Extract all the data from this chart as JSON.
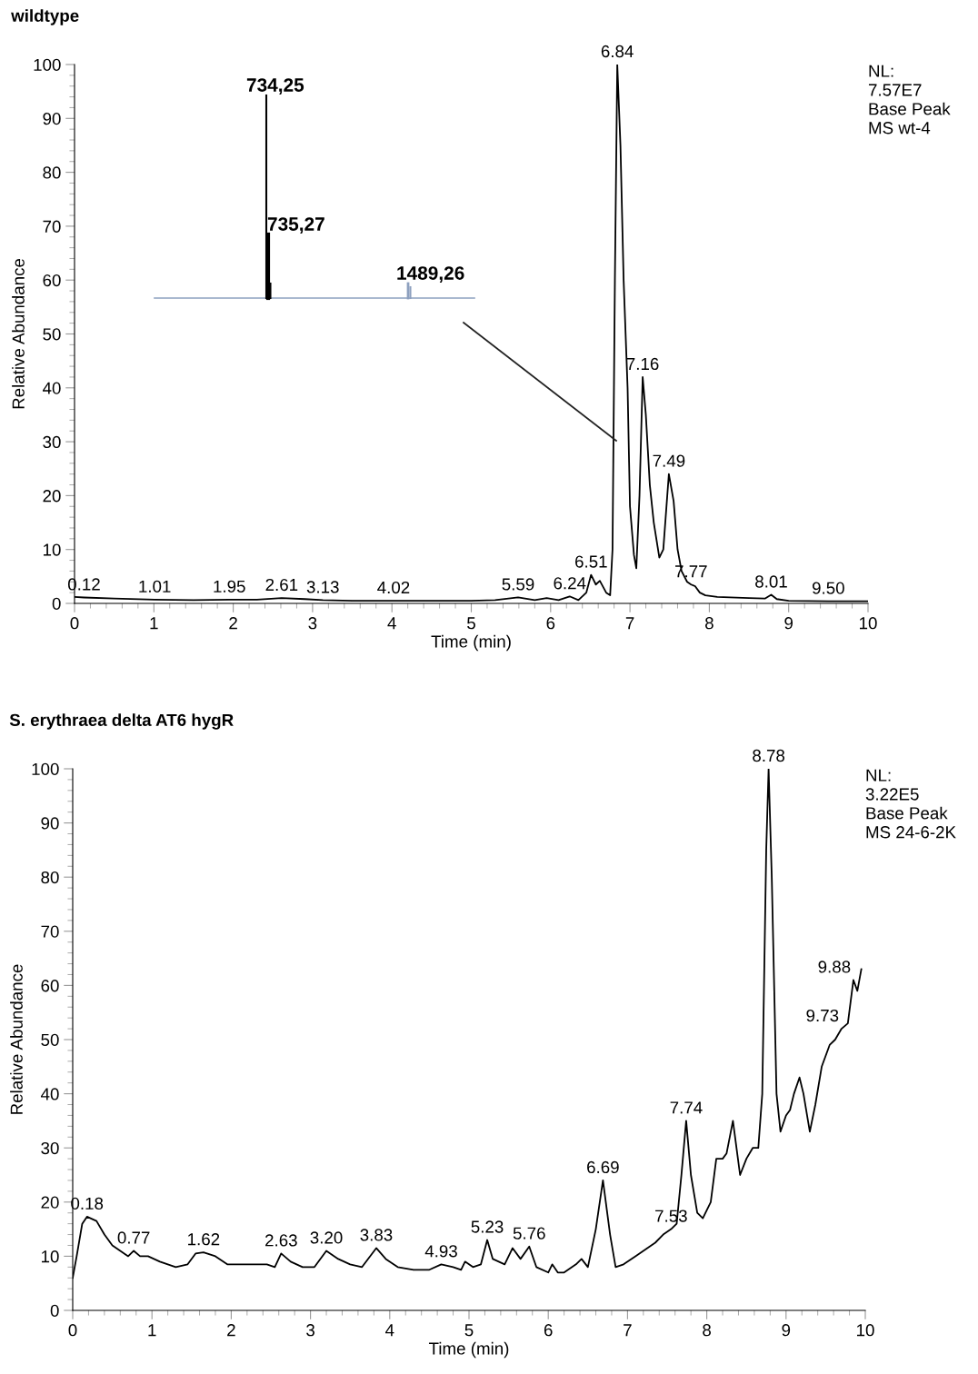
{
  "chart_data": [
    {
      "type": "line",
      "title": "wildtype",
      "xlabel": "Time (min)",
      "ylabel": "Relative Abundance",
      "xlim": [
        0,
        10
      ],
      "xticks": [
        0,
        1,
        2,
        3,
        4,
        5,
        6,
        7,
        8,
        9,
        10
      ],
      "ylim": [
        0,
        100
      ],
      "yticks": [
        0,
        10,
        20,
        30,
        40,
        50,
        60,
        70,
        80,
        90,
        100
      ],
      "grid": false,
      "legend": false,
      "marker": "none",
      "line_style": "solid",
      "series": [
        {
          "color": "#000000",
          "x": [
            0,
            0.12,
            0.5,
            1.01,
            1.5,
            1.95,
            2.3,
            2.61,
            2.9,
            3.13,
            3.5,
            4.02,
            4.5,
            5.0,
            5.3,
            5.59,
            5.8,
            5.95,
            6.1,
            6.24,
            6.35,
            6.45,
            6.51,
            6.57,
            6.62,
            6.7,
            6.75,
            6.78,
            6.81,
            6.84,
            6.88,
            6.92,
            6.97,
            7.0,
            7.05,
            7.08,
            7.12,
            7.16,
            7.2,
            7.25,
            7.3,
            7.37,
            7.42,
            7.49,
            7.55,
            7.6,
            7.65,
            7.72,
            7.77,
            7.82,
            7.88,
            7.95,
            8.1,
            8.5,
            8.7,
            8.78,
            8.85,
            9.0,
            9.5,
            10
          ],
          "values": [
            1.2,
            1.1,
            0.9,
            0.7,
            0.6,
            0.7,
            0.7,
            1.0,
            0.8,
            0.6,
            0.5,
            0.5,
            0.5,
            0.5,
            0.6,
            1.1,
            0.6,
            1.0,
            0.6,
            1.3,
            0.6,
            2,
            5.3,
            3.5,
            4.2,
            2.0,
            1.5,
            10,
            60,
            100,
            85,
            60,
            40,
            18,
            9,
            6.5,
            20,
            42,
            35,
            22,
            15,
            8.5,
            10,
            24,
            19,
            10,
            6,
            4,
            3.5,
            3.2,
            2,
            1.5,
            1.2,
            1.0,
            0.9,
            1.6,
            0.8,
            0.5,
            0.4,
            0.4
          ]
        }
      ],
      "annotations": [
        "NL:\n7.57E7\nBase Peak\nMS wt-4",
        "734,25",
        "735,27",
        "1489,26",
        {
          "text": "0.12",
          "x": 0.12,
          "y": 1.1
        },
        {
          "text": "1.01",
          "x": 1.01,
          "y": 0.7
        },
        {
          "text": "1.95",
          "x": 1.95,
          "y": 0.7
        },
        {
          "text": "2.61",
          "x": 2.61,
          "y": 1.0
        },
        {
          "text": "3.13",
          "x": 3.13,
          "y": 0.6
        },
        {
          "text": "4.02",
          "x": 4.02,
          "y": 0.5
        },
        {
          "text": "5.59",
          "x": 5.59,
          "y": 1.1
        },
        {
          "text": "6.24",
          "x": 6.24,
          "y": 1.3
        },
        {
          "text": "6.51",
          "x": 6.51,
          "y": 5.3
        },
        {
          "text": "6.84",
          "x": 6.84,
          "y": 100
        },
        {
          "text": "7.16",
          "x": 7.16,
          "y": 42
        },
        {
          "text": "7.49",
          "x": 7.49,
          "y": 24
        },
        {
          "text": "7.77",
          "x": 7.77,
          "y": 3.5
        },
        {
          "text": "8.01",
          "x": 8.78,
          "y": 1.6
        },
        {
          "text": "9.50",
          "x": 9.5,
          "y": 0.4
        }
      ]
    },
    {
      "type": "line",
      "title": "S. erythraea delta AT6 hygR",
      "xlabel": "Time (min)",
      "ylabel": "Relative Abundance",
      "xlim": [
        0,
        10
      ],
      "xticks": [
        0,
        1,
        2,
        3,
        4,
        5,
        6,
        7,
        8,
        9,
        10
      ],
      "ylim": [
        0,
        100
      ],
      "yticks": [
        0,
        10,
        20,
        30,
        40,
        50,
        60,
        70,
        80,
        90,
        100
      ],
      "grid": false,
      "legend": false,
      "marker": "none",
      "line_style": "solid",
      "series": [
        {
          "color": "#000000",
          "x": [
            0,
            0.05,
            0.12,
            0.18,
            0.3,
            0.4,
            0.5,
            0.6,
            0.7,
            0.77,
            0.85,
            0.95,
            1.1,
            1.3,
            1.45,
            1.55,
            1.65,
            1.8,
            1.95,
            2.1,
            2.3,
            2.45,
            2.55,
            2.63,
            2.75,
            2.9,
            3.05,
            3.2,
            3.35,
            3.5,
            3.65,
            3.83,
            3.95,
            4.1,
            4.3,
            4.5,
            4.65,
            4.8,
            4.9,
            4.95,
            5.05,
            5.15,
            5.23,
            5.3,
            5.45,
            5.55,
            5.65,
            5.76,
            5.85,
            6.0,
            6.05,
            6.12,
            6.2,
            6.35,
            6.42,
            6.5,
            6.6,
            6.69,
            6.78,
            6.85,
            6.95,
            7.1,
            7.25,
            7.35,
            7.45,
            7.55,
            7.62,
            7.68,
            7.74,
            7.8,
            7.88,
            7.95,
            8.05,
            8.12,
            8.2,
            8.25,
            8.33,
            8.42,
            8.5,
            8.58,
            8.65,
            8.7,
            8.75,
            8.78,
            8.82,
            8.88,
            8.93,
            9.0,
            9.05,
            9.1,
            9.17,
            9.22,
            9.3,
            9.37,
            9.45,
            9.55,
            9.62,
            9.7,
            9.78,
            9.85,
            9.9,
            9.95
          ],
          "values": [
            6,
            10,
            16,
            17.3,
            16.5,
            14,
            12,
            11,
            10,
            11,
            10,
            10,
            9,
            8,
            8.5,
            10.5,
            10.7,
            10,
            8.5,
            8.5,
            8.5,
            8.5,
            8,
            10.5,
            9,
            8,
            8,
            11,
            9.5,
            8.5,
            8,
            11.5,
            9.5,
            8,
            7.5,
            7.5,
            8.5,
            8,
            7.5,
            9,
            8,
            8.5,
            13,
            9.5,
            8.5,
            11.5,
            9.5,
            11.8,
            8,
            7,
            8.5,
            7,
            7,
            8.5,
            9.5,
            8,
            15,
            24,
            14,
            8,
            8.5,
            10,
            11.5,
            12.5,
            14,
            15,
            16,
            25,
            35,
            25,
            18,
            17,
            20,
            28,
            28,
            29,
            35,
            25,
            28,
            30,
            30,
            40,
            85,
            100,
            80,
            40,
            33,
            36,
            37,
            40,
            43,
            40,
            33,
            38,
            45,
            49,
            50,
            52,
            53,
            61,
            59,
            63
          ]
        }
      ],
      "annotations": [
        "NL:\n3.22E5\nBase Peak\nMS 24-6-2K",
        {
          "text": "0.18",
          "x": 0.18,
          "y": 17.3
        },
        {
          "text": "0.77",
          "x": 0.77,
          "y": 11
        },
        {
          "text": "1.62",
          "x": 1.65,
          "y": 10.7
        },
        {
          "text": "2.63",
          "x": 2.63,
          "y": 10.5
        },
        {
          "text": "3.20",
          "x": 3.2,
          "y": 11
        },
        {
          "text": "3.83",
          "x": 3.83,
          "y": 11.5
        },
        {
          "text": "4.93",
          "x": 4.65,
          "y": 8.5
        },
        {
          "text": "5.23",
          "x": 5.23,
          "y": 13
        },
        {
          "text": "5.76",
          "x": 5.76,
          "y": 11.8
        },
        {
          "text": "6.69",
          "x": 6.69,
          "y": 24
        },
        {
          "text": "7.53",
          "x": 7.55,
          "y": 15
        },
        {
          "text": "7.74",
          "x": 7.74,
          "y": 35
        },
        {
          "text": "8.78",
          "x": 8.78,
          "y": 100
        },
        {
          "text": "9.73",
          "x": 9.7,
          "y": 52
        },
        {
          "text": "9.88",
          "x": 9.85,
          "y": 61
        }
      ]
    }
  ]
}
